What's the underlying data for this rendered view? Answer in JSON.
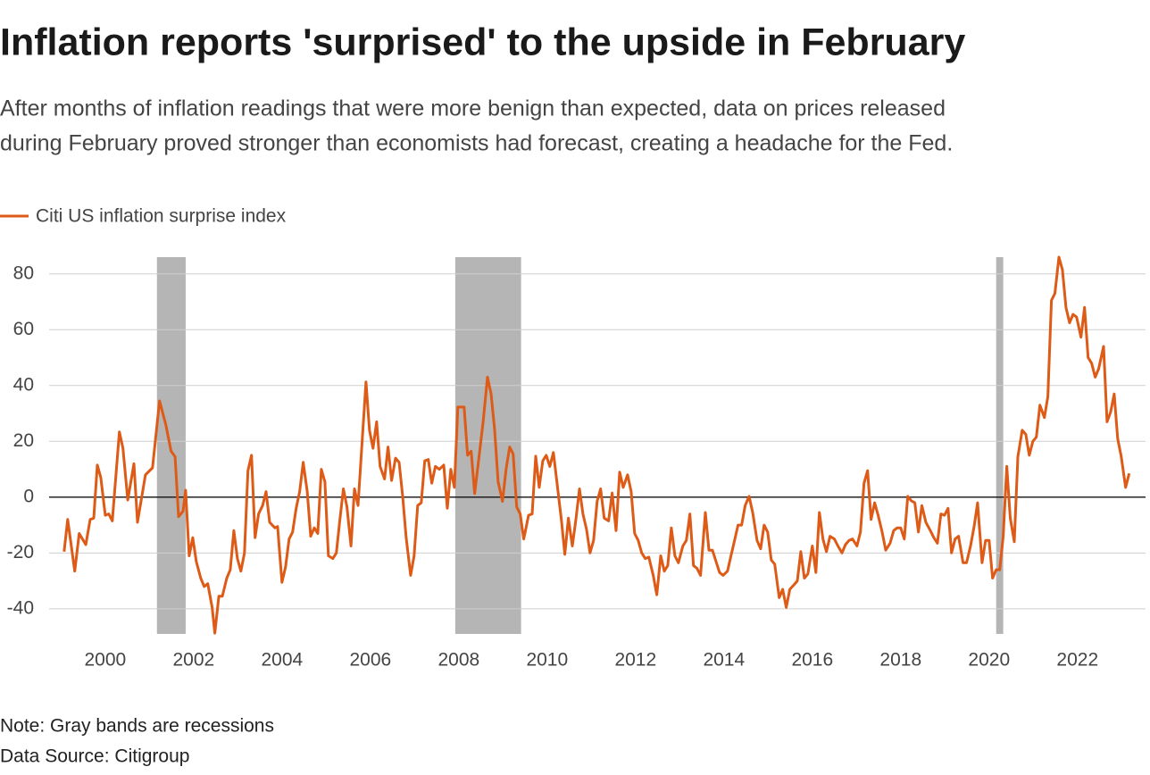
{
  "chart_data": {
    "type": "line",
    "title": "Inflation reports 'surprised' to the upside in February",
    "subtitle": [
      "After months of inflation readings that were more benign than expected, data on prices released",
      "during February proved stronger than economists had forecast, creating a headache for the Fed."
    ],
    "notes": [
      "Note: Gray bands are recessions",
      "Data Source: Citigroup"
    ],
    "bands": [
      [
        2001.17,
        2001.82
      ],
      [
        2007.92,
        2009.41
      ],
      [
        2020.16,
        2020.32
      ]
    ],
    "band_color": "#b5b5b5",
    "xlim": [
      1998.73,
      2023.54
    ],
    "ylim": [
      -49,
      86
    ],
    "xticks": [
      2000,
      2002,
      2004,
      2006,
      2008,
      2010,
      2012,
      2014,
      2016,
      2018,
      2020,
      2022
    ],
    "yticks": [
      -40,
      -20,
      0,
      20,
      40,
      60,
      80
    ],
    "grid": true,
    "legend": "top-left",
    "x": [
      1999.07,
      1999.15,
      1999.31,
      1999.41,
      1999.56,
      1999.66,
      1999.74,
      1999.82,
      1999.9,
      2000.0,
      2000.08,
      2000.16,
      2000.32,
      2000.4,
      2000.51,
      2000.65,
      2000.73,
      2000.91,
      2001.07,
      2001.23,
      2001.37,
      2001.49,
      2001.58,
      2001.66,
      2001.76,
      2001.82,
      2001.9,
      2001.98,
      2002.06,
      2002.16,
      2002.24,
      2002.32,
      2002.42,
      2002.48,
      2002.57,
      2002.65,
      2002.75,
      2002.83,
      2002.91,
      2002.99,
      2003.07,
      2003.15,
      2003.23,
      2003.31,
      2003.39,
      2003.47,
      2003.56,
      2003.64,
      2003.72,
      2003.84,
      2003.9,
      2004.0,
      2004.08,
      2004.16,
      2004.24,
      2004.32,
      2004.4,
      2004.48,
      2004.57,
      2004.65,
      2004.73,
      2004.81,
      2004.89,
      2004.97,
      2005.05,
      2005.15,
      2005.23,
      2005.31,
      2005.39,
      2005.47,
      2005.56,
      2005.64,
      2005.72,
      2005.82,
      2005.9,
      2005.98,
      2006.06,
      2006.14,
      2006.22,
      2006.32,
      2006.4,
      2006.48,
      2006.57,
      2006.65,
      2006.73,
      2006.81,
      2006.91,
      2006.99,
      2007.07,
      2007.15,
      2007.23,
      2007.31,
      2007.39,
      2007.47,
      2007.56,
      2007.66,
      2007.74,
      2007.82,
      2007.9,
      2007.98,
      2008.12,
      2008.2,
      2008.28,
      2008.36,
      2008.44,
      2008.55,
      2008.65,
      2008.73,
      2008.81,
      2008.89,
      2008.99,
      2009.07,
      2009.15,
      2009.23,
      2009.31,
      2009.39,
      2009.47,
      2009.58,
      2009.66,
      2009.74,
      2009.82,
      2009.9,
      2009.98,
      2010.06,
      2010.14,
      2010.22,
      2010.32,
      2010.4,
      2010.48,
      2010.57,
      2010.65,
      2010.73,
      2010.81,
      2010.89,
      2010.97,
      2011.05,
      2011.13,
      2011.21,
      2011.29,
      2011.39,
      2011.47,
      2011.56,
      2011.64,
      2011.72,
      2011.82,
      2011.9,
      2011.98,
      2012.06,
      2012.14,
      2012.22,
      2012.3,
      2012.4,
      2012.48,
      2012.57,
      2012.65,
      2012.73,
      2012.81,
      2012.89,
      2012.97,
      2013.07,
      2013.15,
      2013.23,
      2013.31,
      2013.39,
      2013.47,
      2013.58,
      2013.66,
      2013.74,
      2013.82,
      2013.9,
      2013.98,
      2014.08,
      2014.16,
      2014.24,
      2014.32,
      2014.4,
      2014.48,
      2014.57,
      2014.65,
      2014.75,
      2014.83,
      2014.91,
      2014.99,
      2015.07,
      2015.15,
      2015.25,
      2015.33,
      2015.41,
      2015.49,
      2015.58,
      2015.66,
      2015.74,
      2015.82,
      2015.9,
      2016.0,
      2016.08,
      2016.16,
      2016.24,
      2016.32,
      2016.4,
      2016.5,
      2016.58,
      2016.67,
      2016.75,
      2016.83,
      2016.91,
      2017.01,
      2017.09,
      2017.17,
      2017.25,
      2017.33,
      2017.41,
      2017.49,
      2017.58,
      2017.66,
      2017.76,
      2017.84,
      2017.92,
      2018.0,
      2018.08,
      2018.16,
      2018.24,
      2018.32,
      2018.4,
      2018.48,
      2018.57,
      2018.67,
      2018.75,
      2018.83,
      2018.91,
      2018.99,
      2019.07,
      2019.15,
      2019.23,
      2019.31,
      2019.41,
      2019.49,
      2019.58,
      2019.66,
      2019.74,
      2019.84,
      2019.92,
      2020.0,
      2020.08,
      2020.16,
      2020.24,
      2020.32,
      2020.4,
      2020.48,
      2020.57,
      2020.65,
      2020.75,
      2020.83,
      2020.91,
      2020.99,
      2021.07,
      2021.15,
      2021.25,
      2021.33,
      2021.41,
      2021.49,
      2021.58,
      2021.66,
      2021.74,
      2021.82,
      2021.9,
      2021.98,
      2022.08,
      2022.16,
      2022.24,
      2022.32,
      2022.4,
      2022.48,
      2022.59,
      2022.67,
      2022.75,
      2022.83,
      2022.91,
      2022.99,
      2023.09,
      2023.17
    ],
    "series": [
      {
        "name": "Citi US inflation surprise index",
        "color": "#dd5a17",
        "values": [
          -19.5,
          -8,
          -26.5,
          -13,
          -17,
          -8,
          -7.5,
          11.5,
          7,
          -6.5,
          -6,
          -8.5,
          23.4,
          17.5,
          -1,
          12,
          -9,
          8,
          10.5,
          34.5,
          26,
          16.5,
          14.5,
          -7,
          -5,
          2.5,
          -21,
          -14.5,
          -23,
          -29,
          -32,
          -31,
          -39.5,
          -48.7,
          -35.5,
          -35.5,
          -29,
          -26,
          -12,
          -22,
          -26.5,
          -20,
          9.5,
          15,
          -14.5,
          -6,
          -3,
          2,
          -9,
          -11,
          -10.5,
          -30.5,
          -25,
          -15,
          -12.5,
          -4,
          2,
          12.5,
          2,
          -14,
          -11,
          -13,
          10,
          5.5,
          -21,
          -22,
          -20,
          -8,
          3,
          -3.5,
          -17.5,
          3,
          -3,
          21.5,
          41.3,
          24,
          17.5,
          27,
          11,
          6.5,
          18,
          6,
          14,
          12.5,
          0.3,
          -14.5,
          -28,
          -21,
          -3,
          -2,
          13,
          13.5,
          5,
          11,
          10,
          11.5,
          -4,
          10,
          3.5,
          32.3,
          32.3,
          15,
          16.5,
          1.3,
          12,
          27,
          43,
          37,
          24.5,
          5.5,
          -1.5,
          10,
          18,
          15.5,
          -3.5,
          -6,
          -15,
          -6.5,
          -6,
          14.7,
          3.5,
          13,
          15,
          11,
          16,
          5.5,
          -8,
          -20.5,
          -7.5,
          -17.5,
          -8,
          3,
          -6,
          -11.5,
          -20,
          -15.5,
          -1.5,
          3,
          -7.5,
          -8.5,
          1.5,
          -12,
          9,
          3.5,
          8,
          2,
          -13,
          -15.5,
          -20,
          -22,
          -21.5,
          -28,
          -35,
          -21,
          -26.5,
          -24.5,
          -11,
          -21,
          -23.5,
          -17.5,
          -15.5,
          -6,
          -24.5,
          -25.5,
          -28,
          -5.5,
          -19,
          -19,
          -23,
          -27,
          -28,
          -26.5,
          -21,
          -15.5,
          -10,
          -10,
          -3,
          0.3,
          -5.5,
          -15.5,
          -18.5,
          -10,
          -12.5,
          -22.5,
          -24,
          -36,
          -33,
          -39.5,
          -33,
          -31.5,
          -30,
          -19.5,
          -29,
          -27.5,
          -17.5,
          -27,
          -5.5,
          -15,
          -19.5,
          -14,
          -15,
          -17.5,
          -20,
          -17,
          -15.5,
          -15,
          -17.5,
          -12.5,
          5,
          9.5,
          -8,
          -2,
          -6.5,
          -12.5,
          -19,
          -16.5,
          -12,
          -11,
          -11,
          -15,
          0.3,
          -1.3,
          -2,
          -12.5,
          -3,
          -9,
          -12,
          -14.5,
          -16.5,
          -6,
          -6.5,
          -4,
          -20,
          -15,
          -14,
          -23.5,
          -23.5,
          -17.5,
          -10.5,
          -2,
          -23.5,
          -15.5,
          -15.5,
          -29,
          -26,
          -26,
          -14,
          11,
          -7.5,
          -16,
          14.5,
          24,
          22.5,
          15,
          20,
          21.5,
          33,
          28.5,
          36,
          70.5,
          73,
          86,
          81.5,
          68,
          62.5,
          65.5,
          64.5,
          57.3,
          68,
          50,
          48,
          43,
          46,
          54,
          27,
          30.5,
          37,
          21,
          14.5,
          3.5,
          8.5
        ]
      }
    ]
  }
}
